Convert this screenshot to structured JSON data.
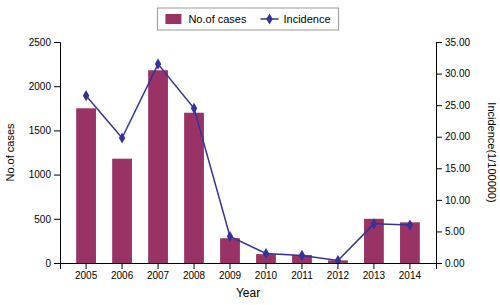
{
  "chart_data": {
    "type": "bar",
    "xlabel": "Year",
    "ylabel": "No.of cases",
    "y2label": "Incidence(1/100000)",
    "categories": [
      "2005",
      "2006",
      "2007",
      "2008",
      "2009",
      "2010",
      "2011",
      "2012",
      "2013",
      "2014"
    ],
    "series": [
      {
        "name": "No.of cases",
        "type": "bar",
        "color": "#993366",
        "values": [
          1750,
          1180,
          2180,
          1700,
          280,
          100,
          90,
          30,
          500,
          460
        ]
      },
      {
        "name": "Incidence",
        "type": "line",
        "axis": "y2",
        "color": "#333399",
        "marker": "diamond",
        "values": [
          26.5,
          19.8,
          31.5,
          24.5,
          4.2,
          1.5,
          1.2,
          0.4,
          6.2,
          6.0
        ]
      }
    ],
    "ylim": [
      0,
      2500
    ],
    "yticks": [
      0,
      500,
      1000,
      1500,
      2000,
      2500
    ],
    "y2lim": [
      0,
      35.0
    ],
    "y2ticks": [
      {
        "value": 0,
        "label": "0.00"
      },
      {
        "value": 5,
        "label": "5.00"
      },
      {
        "value": 10,
        "label": "10.00"
      },
      {
        "value": 15,
        "label": "15.00"
      },
      {
        "value": 20,
        "label": "20.00"
      },
      {
        "value": 25,
        "label": "25.00"
      },
      {
        "value": 30,
        "label": "30.00"
      },
      {
        "value": 35,
        "label": "35.00"
      }
    ],
    "legend": "top",
    "grid": false
  }
}
